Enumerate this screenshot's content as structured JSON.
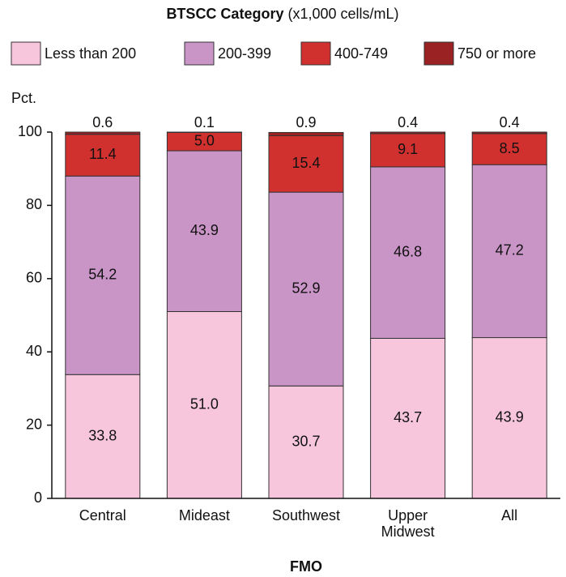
{
  "chart_data": {
    "type": "stacked_bar",
    "title": "BTSCC Category",
    "title_note": "(x1,000 cells/mL)",
    "y_label": "Pct.",
    "x_label": "FMO",
    "categories": [
      "Central",
      "Mideast",
      "Southwest",
      "Upper Midwest",
      "All"
    ],
    "series": [
      {
        "name": "Less than 200",
        "color": "#f7c6dc",
        "values": [
          33.8,
          51.0,
          30.7,
          43.7,
          43.9
        ],
        "value_labels": [
          "33.8",
          "51.0",
          "30.7",
          "43.7",
          "43.9"
        ]
      },
      {
        "name": "200-399",
        "color": "#c994c6",
        "values": [
          54.2,
          43.9,
          52.9,
          46.8,
          47.2
        ],
        "value_labels": [
          "54.2",
          "43.9",
          "52.9",
          "46.8",
          "47.2"
        ]
      },
      {
        "name": "400-749",
        "color": "#d0312f",
        "values": [
          11.4,
          5.0,
          15.4,
          9.1,
          8.5
        ],
        "value_labels": [
          "11.4",
          "5.0",
          "15.4",
          "9.1",
          "8.5"
        ]
      },
      {
        "name": "750 or more",
        "color": "#9a2222",
        "values": [
          0.6,
          0.1,
          0.9,
          0.4,
          0.4
        ],
        "value_labels": [
          "0.6",
          "0.1",
          "0.9",
          "0.4",
          "0.4"
        ]
      }
    ],
    "ylim": [
      0,
      100
    ],
    "yticks": [
      0,
      20,
      40,
      60,
      80,
      100
    ]
  }
}
